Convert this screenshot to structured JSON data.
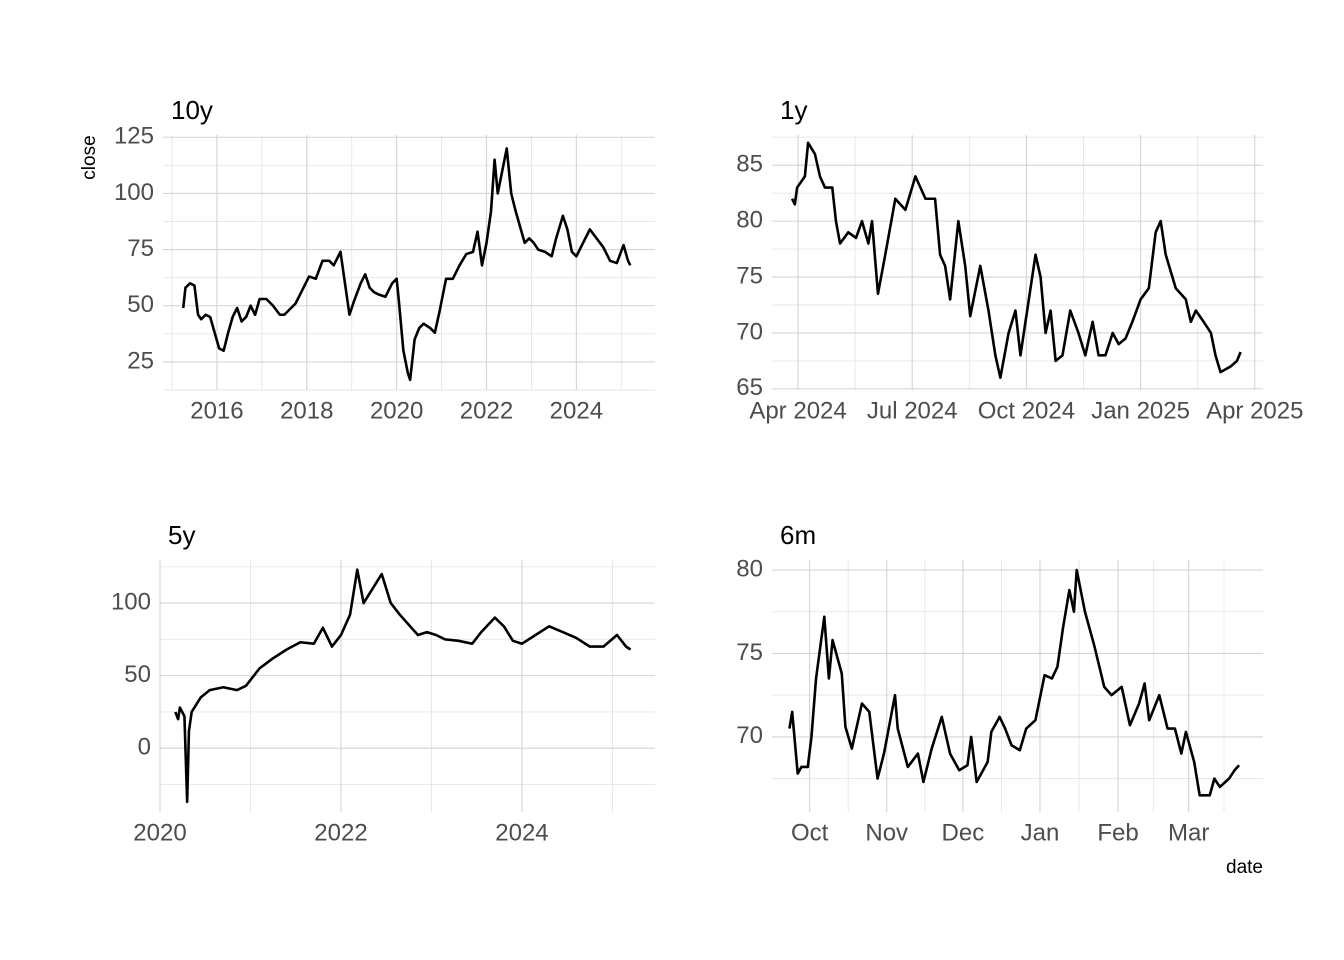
{
  "chart_data": [
    {
      "type": "line",
      "title": "10y",
      "ylabel": "close",
      "color": "#000000",
      "grid": true,
      "minor_grid": true,
      "x": [
        2015.25,
        2015.3,
        2015.4,
        2015.5,
        2015.58,
        2015.65,
        2015.75,
        2015.85,
        2015.95,
        2016.05,
        2016.15,
        2016.25,
        2016.35,
        2016.45,
        2016.55,
        2016.65,
        2016.75,
        2016.85,
        2016.95,
        2017.1,
        2017.25,
        2017.4,
        2017.5,
        2017.6,
        2017.75,
        2017.9,
        2018.05,
        2018.2,
        2018.35,
        2018.5,
        2018.6,
        2018.75,
        2018.85,
        2018.95,
        2019.05,
        2019.2,
        2019.3,
        2019.4,
        2019.5,
        2019.6,
        2019.75,
        2019.9,
        2020.0,
        2020.05,
        2020.15,
        2020.25,
        2020.3,
        2020.4,
        2020.5,
        2020.6,
        2020.75,
        2020.85,
        2020.95,
        2021.1,
        2021.25,
        2021.4,
        2021.55,
        2021.7,
        2021.8,
        2021.9,
        2022.0,
        2022.1,
        2022.18,
        2022.25,
        2022.35,
        2022.45,
        2022.55,
        2022.65,
        2022.75,
        2022.85,
        2022.95,
        2023.05,
        2023.15,
        2023.3,
        2023.45,
        2023.55,
        2023.7,
        2023.8,
        2023.9,
        2024.0,
        2024.15,
        2024.3,
        2024.45,
        2024.6,
        2024.75,
        2024.9,
        2025.05,
        2025.15,
        2025.2
      ],
      "values": [
        49,
        58,
        60,
        59,
        46,
        44,
        46,
        45,
        38,
        31,
        30,
        38,
        45,
        49,
        43,
        45,
        50,
        46,
        53,
        53,
        50,
        46,
        46,
        48,
        51,
        57,
        63,
        62,
        70,
        70,
        68,
        74,
        60,
        46,
        52,
        60,
        64,
        58,
        56,
        55,
        54,
        60,
        62,
        52,
        30,
        20,
        17,
        35,
        40,
        42,
        40,
        38,
        47,
        62,
        62,
        68,
        73,
        74,
        83,
        68,
        78,
        92,
        115,
        100,
        110,
        120,
        100,
        92,
        85,
        78,
        80,
        78,
        75,
        74,
        72,
        80,
        90,
        84,
        74,
        72,
        78,
        84,
        80,
        76,
        70,
        69,
        77,
        70,
        68
      ],
      "xlim": [
        2014.8,
        2025.75
      ],
      "xticks": [
        2016,
        2018,
        2020,
        2022,
        2024
      ],
      "ylim": [
        12.5,
        126
      ],
      "yticks": [
        25,
        50,
        75,
        100,
        125
      ]
    },
    {
      "type": "line",
      "title": "1y",
      "color": "#000000",
      "grid": true,
      "minor_grid": true,
      "x": [
        2024.237,
        2024.243,
        2024.248,
        2024.265,
        2024.272,
        2024.287,
        2024.298,
        2024.309,
        2024.325,
        2024.333,
        2024.342,
        2024.36,
        2024.377,
        2024.39,
        2024.404,
        2024.412,
        2024.425,
        2024.441,
        2024.463,
        2024.485,
        2024.507,
        2024.529,
        2024.55,
        2024.561,
        2024.572,
        2024.583,
        2024.601,
        2024.616,
        2024.627,
        2024.649,
        2024.667,
        2024.682,
        2024.693,
        2024.711,
        2024.726,
        2024.737,
        2024.759,
        2024.77,
        2024.781,
        2024.792,
        2024.803,
        2024.814,
        2024.829,
        2024.846,
        2024.864,
        2024.879,
        2024.895,
        2024.908,
        2024.923,
        2024.939,
        2024.952,
        2024.967,
        2024.982,
        2025.0,
        2025.018,
        2025.033,
        2025.044,
        2025.055,
        2025.077,
        2025.099,
        2025.11,
        2025.121,
        2025.138,
        2025.154,
        2025.164,
        2025.175,
        2025.197,
        2025.211,
        2025.219
      ],
      "values": [
        82,
        81.5,
        83,
        84,
        87,
        86,
        84,
        83,
        83,
        80,
        78,
        79,
        78.5,
        80,
        78,
        80,
        73.5,
        77,
        82,
        81,
        84,
        82,
        82,
        77,
        76,
        73,
        80,
        76,
        71.5,
        76,
        72,
        68,
        66,
        70,
        72,
        68,
        74,
        77,
        75,
        70,
        72,
        67.5,
        68,
        72,
        70,
        68,
        71,
        68,
        68,
        70,
        69,
        69.5,
        71,
        73,
        74,
        79,
        80,
        77,
        74,
        73,
        71,
        72,
        71,
        70,
        68,
        66.5,
        67,
        67.5,
        68.3
      ],
      "xlim": [
        2024.193,
        2025.268
      ],
      "xticks": [
        {
          "value": 2024.25,
          "label": "Apr 2024"
        },
        {
          "value": 2024.5,
          "label": "Jul 2024"
        },
        {
          "value": 2024.75,
          "label": "Oct 2024"
        },
        {
          "value": 2025.0,
          "label": "Jan 2025"
        },
        {
          "value": 2025.25,
          "label": "Apr 2025"
        }
      ],
      "ylim": [
        64.9,
        87.7
      ],
      "yticks": [
        65,
        70,
        75,
        80,
        85
      ]
    },
    {
      "type": "line",
      "title": "5y",
      "color": "#000000",
      "grid": true,
      "minor_grid": true,
      "x": [
        2020.17,
        2020.2,
        2020.22,
        2020.27,
        2020.3,
        2020.32,
        2020.35,
        2020.45,
        2020.55,
        2020.7,
        2020.85,
        2020.95,
        2021.1,
        2021.25,
        2021.4,
        2021.55,
        2021.7,
        2021.8,
        2021.9,
        2022.0,
        2022.1,
        2022.18,
        2022.25,
        2022.35,
        2022.45,
        2022.55,
        2022.65,
        2022.75,
        2022.85,
        2022.95,
        2023.05,
        2023.15,
        2023.3,
        2023.45,
        2023.55,
        2023.7,
        2023.8,
        2023.9,
        2024.0,
        2024.15,
        2024.3,
        2024.45,
        2024.6,
        2024.75,
        2024.9,
        2025.05,
        2025.15,
        2025.2
      ],
      "values": [
        25,
        20,
        28,
        22,
        -37,
        12,
        25,
        35,
        40,
        42,
        40,
        43,
        55,
        62,
        68,
        73,
        72,
        83,
        70,
        78,
        92,
        123,
        100,
        110,
        120,
        100,
        92,
        85,
        78,
        80,
        78,
        75,
        74,
        72,
        80,
        90,
        84,
        74,
        72,
        78,
        84,
        80,
        76,
        70,
        70,
        78,
        70,
        68
      ],
      "xlim": [
        2020,
        2025.47
      ],
      "xticks": [
        2020,
        2022,
        2024
      ],
      "ylim": [
        -44,
        129.7
      ],
      "yticks": [
        0,
        50,
        100
      ]
    },
    {
      "type": "line",
      "title": "6m",
      "xlabel": "date",
      "color": "#000000",
      "grid": true,
      "minor_grid": true,
      "x": [
        2024.727,
        2024.73,
        2024.736,
        2024.74,
        2024.747,
        2024.751,
        2024.756,
        2024.765,
        2024.77,
        2024.774,
        2024.784,
        2024.788,
        2024.795,
        2024.806,
        2024.814,
        2024.823,
        2024.83,
        2024.842,
        2024.845,
        2024.856,
        2024.867,
        2024.873,
        2024.882,
        2024.893,
        2024.902,
        2024.912,
        2024.921,
        2024.925,
        2024.931,
        2024.943,
        2024.947,
        2024.956,
        2024.962,
        2024.969,
        2024.978,
        2024.985,
        2024.995,
        2025.005,
        2025.013,
        2025.019,
        2025.025,
        2025.032,
        2025.037,
        2025.04,
        2025.049,
        2025.059,
        2025.07,
        2025.078,
        2025.089,
        2025.098,
        2025.108,
        2025.114,
        2025.119,
        2025.13,
        2025.139,
        2025.147,
        2025.154,
        2025.159,
        2025.168,
        2025.174,
        2025.185,
        2025.19,
        2025.196,
        2025.206,
        2025.212,
        2025.217
      ],
      "values": [
        70.5,
        71.5,
        67.8,
        68.2,
        68.2,
        70,
        73.5,
        77.2,
        73.5,
        75.8,
        73.8,
        70.6,
        69.3,
        72,
        71.5,
        67.5,
        69,
        72.5,
        70.5,
        68.2,
        69,
        67.3,
        69.3,
        71.2,
        69,
        68,
        68.3,
        70,
        67.3,
        68.5,
        70.3,
        71.2,
        70.5,
        69.5,
        69.2,
        70.5,
        71,
        73.7,
        73.5,
        74.2,
        76.5,
        78.8,
        77.5,
        80,
        77.5,
        75.5,
        73,
        72.5,
        73,
        70.7,
        72,
        73.2,
        71,
        72.5,
        70.5,
        70.5,
        69,
        70.3,
        68.5,
        66.5,
        66.5,
        67.5,
        67,
        67.5,
        68,
        68.3
      ],
      "xlim": [
        2024.708,
        2025.243
      ],
      "xticks": [
        {
          "value": 2024.749,
          "label": "Oct"
        },
        {
          "value": 2024.833,
          "label": "Nov"
        },
        {
          "value": 2024.916,
          "label": "Dec"
        },
        {
          "value": 2025.0,
          "label": "Jan"
        },
        {
          "value": 2025.085,
          "label": "Feb"
        },
        {
          "value": 2025.162,
          "label": "Mar"
        }
      ],
      "ylim": [
        65.5,
        80.6
      ],
      "yticks": [
        70,
        75,
        80
      ]
    }
  ]
}
